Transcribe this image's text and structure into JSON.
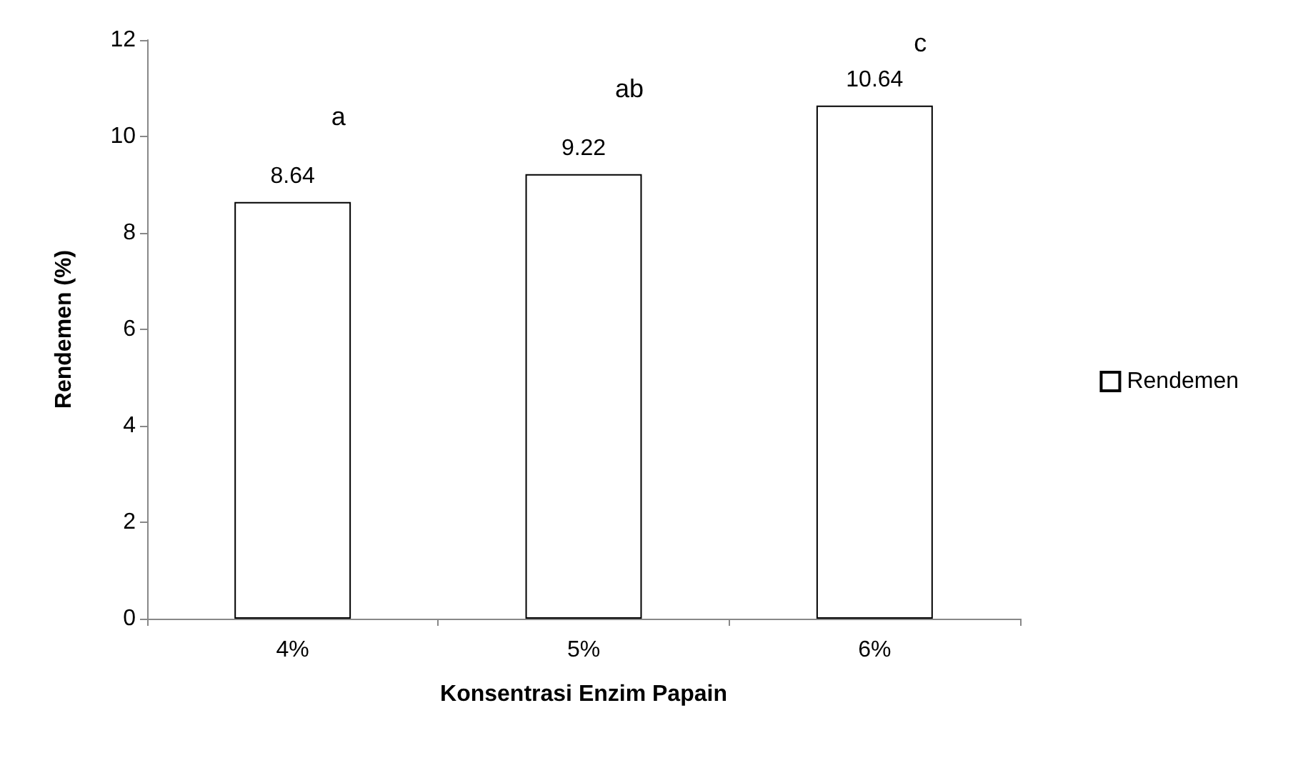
{
  "chart_data": {
    "type": "bar",
    "xlabel": "Konsentrasi Enzim Papain",
    "ylabel": "Rendemen (%)",
    "categories": [
      "4%",
      "5%",
      "6%"
    ],
    "series": [
      {
        "name": "Rendemen",
        "color": "#ffffff",
        "values": [
          8.64,
          9.22,
          10.64
        ]
      }
    ],
    "ylim": [
      0,
      12
    ],
    "yticks": [
      0,
      2,
      4,
      6,
      8,
      10,
      12
    ],
    "grid": false,
    "legend": "right",
    "data_labels": true,
    "annotations": [
      "a",
      "ab",
      "c"
    ]
  }
}
